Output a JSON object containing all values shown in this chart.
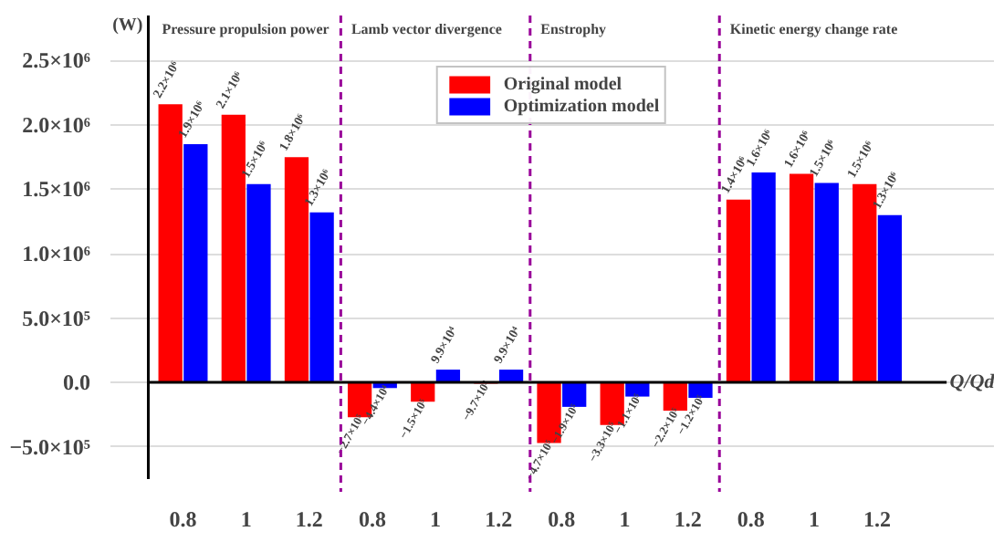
{
  "chart_data": {
    "type": "bar",
    "xlabel": "Q/Qd",
    "ylabel": "(W)",
    "categories": [
      "0.8",
      "1",
      "1.2",
      "0.8",
      "1",
      "1.2",
      "0.8",
      "1",
      "1.2",
      "0.8",
      "1",
      "1.2"
    ],
    "series": [
      {
        "name": "Original model",
        "color": "#ff0000",
        "values": [
          2160000,
          2080000,
          1750000,
          -270000,
          -150000,
          -9700,
          -470000,
          -330000,
          -220000,
          1420000,
          1620000,
          1540000
        ],
        "value_labels": [
          "2.2×10⁶",
          "2.1×10⁶",
          "1.8×10⁶",
          "−2.7×10⁵",
          "−1.5×10⁵",
          "−9.7×10³",
          "−4.7×10⁵",
          "−3.3×10⁵",
          "−2.2×10⁵",
          "1.4×10⁶",
          "1.6×10⁶",
          "1.5×10⁶"
        ]
      },
      {
        "name": "Optimization model",
        "color": "#0000ff",
        "values": [
          1850000,
          1540000,
          1320000,
          -44000,
          99000,
          99000,
          -190000,
          -110000,
          -120000,
          1630000,
          1550000,
          1300000
        ],
        "value_labels": [
          "1.9×10⁶",
          "1.5×10⁶",
          "1.3×10⁶",
          "−4.4×10⁴",
          "9.9×10⁴",
          "9.9×10⁴",
          "−1.9×10⁵",
          "−1.1×10⁵",
          "−1.2×10⁵",
          "1.6×10⁶",
          "1.5×10⁶",
          "1.3×10⁶"
        ]
      }
    ],
    "ylim": [
      -850000,
      2850000
    ],
    "yticks": [
      {
        "value": -500000,
        "label": "−5.0×10⁵"
      },
      {
        "value": 0,
        "label": "0.0"
      },
      {
        "value": 500000,
        "label": "5.0×10⁵"
      },
      {
        "value": 1000000,
        "label": "1.0×10⁶"
      },
      {
        "value": 1500000,
        "label": "1.5×10⁶"
      },
      {
        "value": 2000000,
        "label": "2.0×10⁶"
      },
      {
        "value": 2500000,
        "label": "2.5×10⁶"
      }
    ],
    "annotations": [
      "Pressure propulsion power",
      "Lamb vector divergence",
      "Enstrophy",
      "Kinetic energy change rate"
    ],
    "grid": "y",
    "legend": "top"
  }
}
